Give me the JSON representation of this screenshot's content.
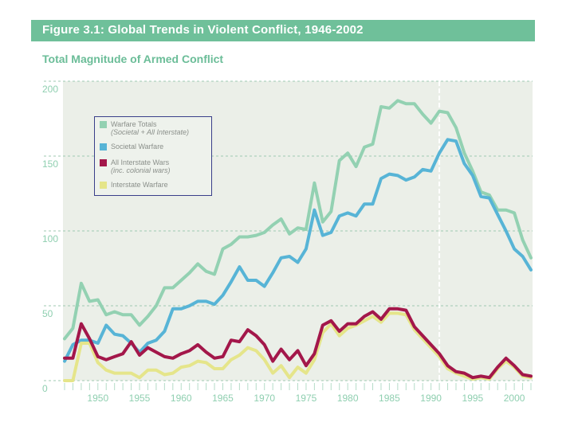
{
  "header": {
    "figure_title": "Figure 3.1: Global Trends in Violent Conflict, 1946-2002",
    "chart_title": "Total Magnitude of Armed Conflict"
  },
  "colors": {
    "title_bar": "#6fc09a",
    "plot_bg": "#ebefe8",
    "warfare_totals": "#93d1b2",
    "societal_warfare": "#57b4d6",
    "all_interstate_wars": "#a3174a",
    "interstate_warfare": "#e5e58a",
    "legend_border": "#3a3f8a"
  },
  "chart_data": {
    "type": "line",
    "title": "Total Magnitude of Armed Conflict",
    "xlabel": "",
    "ylabel": "",
    "xlim": [
      1946,
      2002
    ],
    "ylim": [
      0,
      200
    ],
    "yticks": [
      0,
      50,
      100,
      150,
      200
    ],
    "xticks": [
      1950,
      1955,
      1960,
      1965,
      1970,
      1975,
      1980,
      1985,
      1990,
      1995,
      2000
    ],
    "grid": "horizontal dashed",
    "reference_line_year": 1991,
    "legend_position": "top-left",
    "x": [
      1946,
      1947,
      1948,
      1949,
      1950,
      1951,
      1952,
      1953,
      1954,
      1955,
      1956,
      1957,
      1958,
      1959,
      1960,
      1961,
      1962,
      1963,
      1964,
      1965,
      1966,
      1967,
      1968,
      1969,
      1970,
      1971,
      1972,
      1973,
      1974,
      1975,
      1976,
      1977,
      1978,
      1979,
      1980,
      1981,
      1982,
      1983,
      1984,
      1985,
      1986,
      1987,
      1988,
      1989,
      1990,
      1991,
      1992,
      1993,
      1994,
      1995,
      1996,
      1997,
      1998,
      1999,
      2000,
      2001,
      2002
    ],
    "series": [
      {
        "name": "Warfare Totals",
        "sub": "(Societal + All Interstate)",
        "key": "warfare_totals",
        "values": [
          28,
          35,
          65,
          53,
          54,
          44,
          46,
          44,
          44,
          37,
          43,
          50,
          62,
          62,
          67,
          72,
          78,
          73,
          71,
          88,
          91,
          96,
          96,
          97,
          99,
          104,
          108,
          98,
          102,
          101,
          132,
          106,
          113,
          147,
          152,
          143,
          156,
          158,
          183,
          182,
          187,
          185,
          185,
          178,
          172,
          180,
          179,
          169,
          152,
          140,
          126,
          124,
          114,
          114,
          112,
          94,
          82
        ]
      },
      {
        "name": "Societal Warfare",
        "key": "societal_warfare",
        "values": [
          13,
          24,
          27,
          27,
          25,
          37,
          31,
          30,
          25,
          19,
          25,
          27,
          33,
          48,
          48,
          50,
          53,
          53,
          51,
          57,
          66,
          76,
          67,
          67,
          63,
          72,
          82,
          83,
          79,
          88,
          114,
          97,
          99,
          110,
          112,
          110,
          118,
          118,
          135,
          138,
          137,
          134,
          136,
          141,
          140,
          152,
          161,
          160,
          145,
          137,
          123,
          122,
          111,
          100,
          88,
          83,
          74
        ]
      },
      {
        "name": "All Interstate Wars",
        "sub": "(inc. colonial wars)",
        "key": "all_interstate_wars",
        "values": [
          15,
          15,
          38,
          28,
          16,
          14,
          16,
          18,
          26,
          17,
          22,
          19,
          16,
          15,
          18,
          20,
          24,
          19,
          15,
          16,
          27,
          26,
          34,
          30,
          24,
          13,
          21,
          14,
          20,
          10,
          18,
          37,
          40,
          33,
          38,
          38,
          43,
          46,
          41,
          48,
          48,
          47,
          36,
          30,
          24,
          18,
          10,
          6,
          5,
          2,
          3,
          2,
          9,
          15,
          10,
          4,
          3
        ]
      },
      {
        "name": "Interstate Warfare",
        "key": "interstate_warfare",
        "values": [
          0,
          0,
          25,
          25,
          12,
          7,
          5,
          5,
          5,
          2,
          7,
          7,
          4,
          5,
          9,
          10,
          13,
          12,
          8,
          8,
          14,
          17,
          22,
          20,
          14,
          5,
          10,
          2,
          9,
          5,
          14,
          32,
          38,
          30,
          35,
          37,
          40,
          43,
          39,
          45,
          45,
          44,
          34,
          28,
          22,
          16,
          8,
          5,
          3,
          1,
          2,
          1,
          8,
          13,
          9,
          3,
          2
        ]
      }
    ]
  }
}
